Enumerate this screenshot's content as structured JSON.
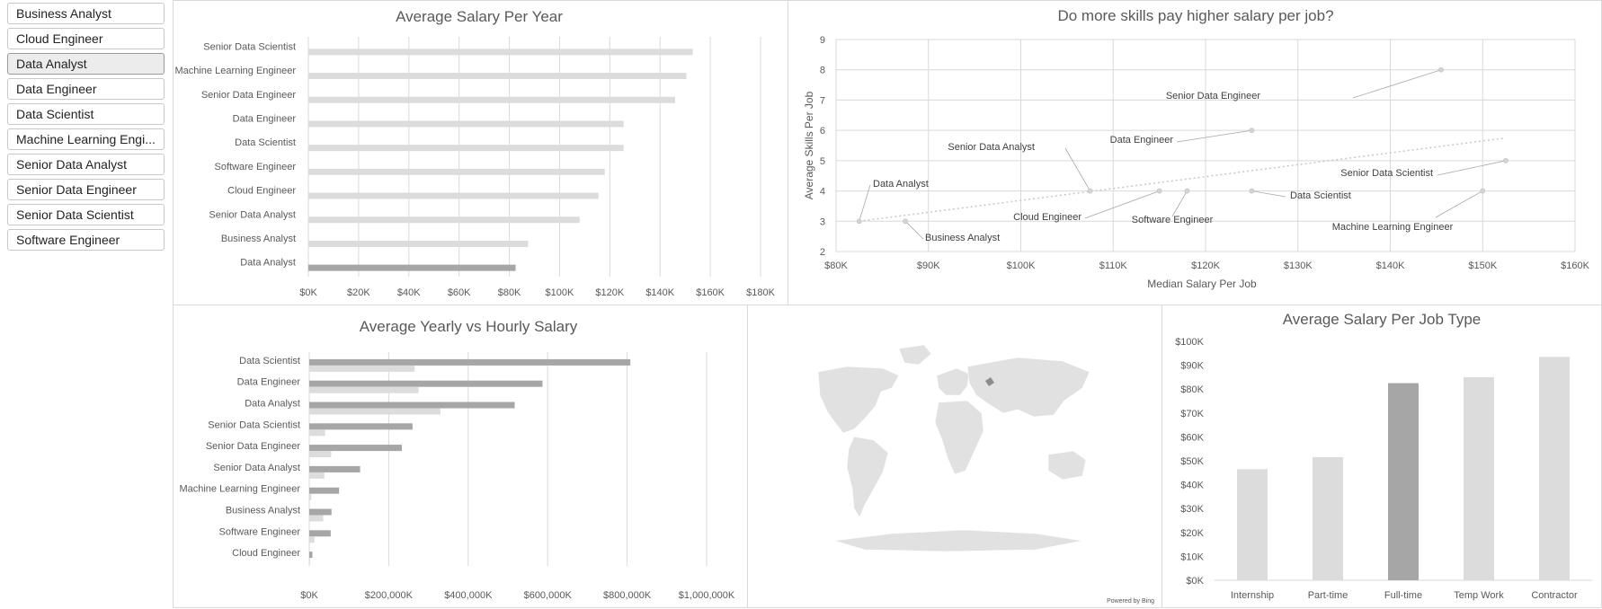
{
  "slicer": {
    "items": [
      {
        "label": "Business Analyst",
        "selected": false
      },
      {
        "label": "Cloud Engineer",
        "selected": false
      },
      {
        "label": "Data Analyst",
        "selected": true
      },
      {
        "label": "Data Engineer",
        "selected": false
      },
      {
        "label": "Data Scientist",
        "selected": false
      },
      {
        "label": "Machine Learning Engi...",
        "selected": false
      },
      {
        "label": "Senior Data Analyst",
        "selected": false
      },
      {
        "label": "Senior Data Engineer",
        "selected": false
      },
      {
        "label": "Senior Data Scientist",
        "selected": false
      },
      {
        "label": "Software Engineer",
        "selected": false
      }
    ]
  },
  "map": {
    "credit": "Powered by Bing"
  },
  "colors": {
    "highlight": "#a6a6a6",
    "base": "#dcdcdc",
    "grid": "#d9d9d9"
  },
  "chart_data": [
    {
      "type": "bar",
      "orientation": "horizontal",
      "title": "Average Salary Per Year",
      "categories": [
        "Senior Data Scientist",
        "Machine Learning Engineer",
        "Senior Data Engineer",
        "Data Engineer",
        "Data Scientist",
        "Software Engineer",
        "Cloud Engineer",
        "Senior Data Analyst",
        "Business Analyst",
        "Data Analyst"
      ],
      "values": [
        153000,
        150500,
        146000,
        125500,
        125500,
        118000,
        115500,
        108000,
        87500,
        82500
      ],
      "highlight": "Data Analyst",
      "xlim": [
        0,
        180000
      ],
      "xticks": [
        "$0K",
        "$20K",
        "$40K",
        "$60K",
        "$80K",
        "$100K",
        "$120K",
        "$140K",
        "$160K",
        "$180K"
      ],
      "grid": true
    },
    {
      "type": "scatter",
      "title": "Do more skills pay higher salary per job?",
      "xlabel": "Median Salary Per Job",
      "ylabel": "Average Skills Per Job",
      "xlim": [
        80000,
        160000
      ],
      "ylim": [
        2,
        9
      ],
      "xticks": [
        "$80K",
        "$90K",
        "$100K",
        "$110K",
        "$120K",
        "$130K",
        "$140K",
        "$150K",
        "$160K"
      ],
      "yticks": [
        "2",
        "3",
        "4",
        "5",
        "6",
        "7",
        "8",
        "9"
      ],
      "points": [
        {
          "label": "Senior Data Engineer",
          "x": 145500,
          "y": 8
        },
        {
          "label": "Data Engineer",
          "x": 125000,
          "y": 6
        },
        {
          "label": "Senior Data Scientist",
          "x": 152500,
          "y": 5
        },
        {
          "label": "Senior Data Analyst",
          "x": 107500,
          "y": 4
        },
        {
          "label": "Data Analyst",
          "x": 82500,
          "y": 3
        },
        {
          "label": "Cloud Engineer",
          "x": 115000,
          "y": 4
        },
        {
          "label": "Software Engineer",
          "x": 118000,
          "y": 4
        },
        {
          "label": "Data Scientist",
          "x": 125000,
          "y": 4
        },
        {
          "label": "Machine Learning Engineer",
          "x": 150000,
          "y": 4
        },
        {
          "label": "Business Analyst",
          "x": 87500,
          "y": 3
        }
      ],
      "trendline": {
        "x0": 82500,
        "y0": 3,
        "x1": 152500,
        "y1": 5.75
      },
      "grid": true
    },
    {
      "type": "bar",
      "orientation": "horizontal",
      "title": "Average Yearly vs Hourly Salary",
      "categories": [
        "Data Scientist",
        "Data Engineer",
        "Data Analyst",
        "Senior Data Scientist",
        "Senior Data Engineer",
        "Senior Data Analyst",
        "Machine Learning Engineer",
        "Business Analyst",
        "Software Engineer",
        "Cloud Engineer"
      ],
      "series": [
        {
          "values": [
            808000,
            587000,
            517000,
            260000,
            233000,
            128000,
            75000,
            56000,
            54000,
            8000
          ]
        },
        {
          "values": [
            265000,
            275000,
            330000,
            40000,
            55000,
            38000,
            5000,
            35000,
            13000,
            2000
          ]
        }
      ],
      "xlim": [
        0,
        1000000
      ],
      "xticks": [
        "$0K",
        "$200,000K",
        "$400,000K",
        "$600,000K",
        "$800,000K",
        "$1,000,000K"
      ],
      "grid": true
    },
    {
      "type": "bar",
      "title": "Average Salary Per Job Type",
      "categories": [
        "Internship",
        "Part-time",
        "Full-time",
        "Temp Work",
        "Contractor"
      ],
      "values": [
        46500,
        51500,
        82500,
        85000,
        93500
      ],
      "highlight": "Full-time",
      "ylim": [
        0,
        100000
      ],
      "yticks": [
        "$0K",
        "$10K",
        "$20K",
        "$30K",
        "$40K",
        "$50K",
        "$60K",
        "$70K",
        "$80K",
        "$90K",
        "$100K"
      ],
      "grid": false
    }
  ]
}
